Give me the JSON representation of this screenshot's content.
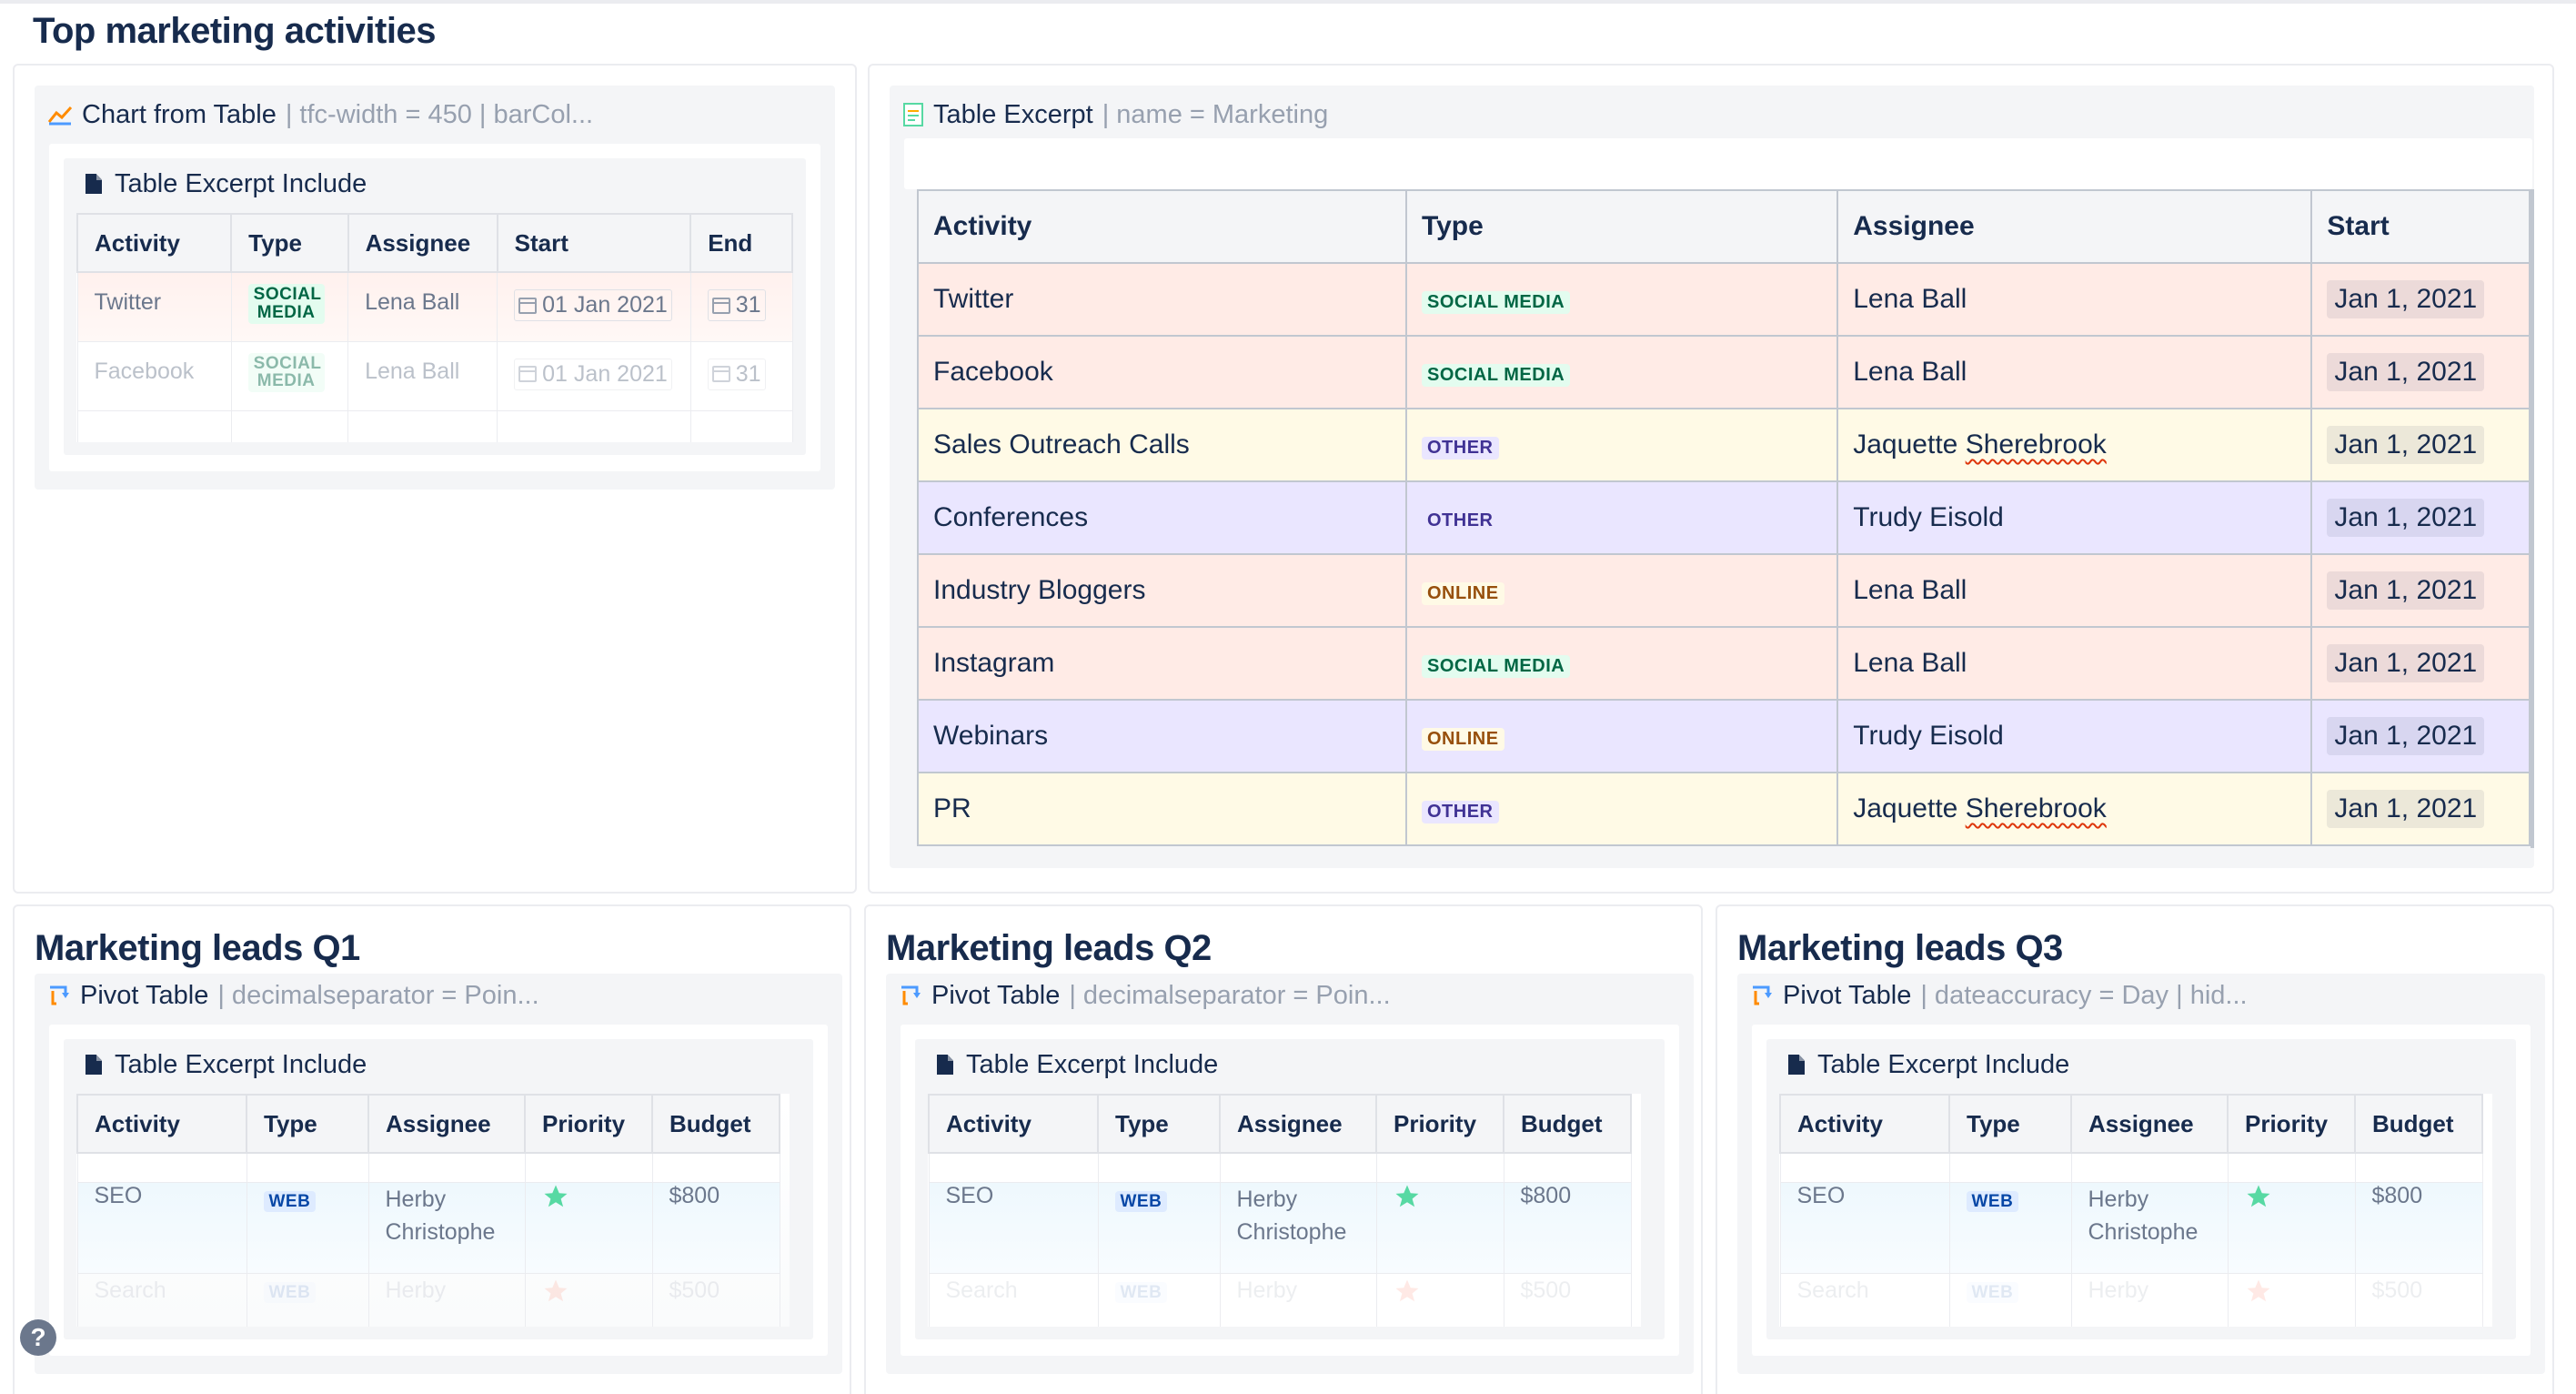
{
  "page": {
    "title": "Top marketing activities"
  },
  "chart_macro": {
    "title": "Chart from Table",
    "params": "| tfc-width = 450 | barCol...",
    "include_title": "Table Excerpt Include",
    "headers": [
      "Activity",
      "Type",
      "Assignee",
      "Start",
      "End"
    ],
    "rows": [
      {
        "activity": "Twitter",
        "type": "SOCIAL MEDIA",
        "assignee": "Lena Ball",
        "start": "01 Jan 2021",
        "end": "31"
      },
      {
        "activity": "Facebook",
        "type": "SOCIAL MEDIA",
        "assignee": "Lena Ball",
        "start": "01 Jan 2021",
        "end": "31"
      }
    ]
  },
  "excerpt_macro": {
    "title": "Table Excerpt",
    "params": "| name = Marketing",
    "headers": [
      "Activity",
      "Type",
      "Assignee",
      "Start"
    ],
    "rows": [
      {
        "activity": "Twitter",
        "type": "SOCIAL MEDIA",
        "type_style": "social",
        "assignee": "Lena Ball",
        "start": "Jan 1, 2021",
        "color": "red"
      },
      {
        "activity": "Facebook",
        "type": "SOCIAL MEDIA",
        "type_style": "social",
        "assignee": "Lena Ball",
        "start": "Jan 1, 2021",
        "color": "red"
      },
      {
        "activity": "Sales Outreach Calls",
        "type": "OTHER",
        "type_style": "other",
        "assignee_first": "Jaquette",
        "assignee_last": "Sherebrook",
        "start": "Jan 1, 2021",
        "color": "yellow"
      },
      {
        "activity": "Conferences",
        "type": "OTHER",
        "type_style": "other",
        "assignee": "Trudy Eisold",
        "start": "Jan 1, 2021",
        "color": "purple"
      },
      {
        "activity": "Industry Bloggers",
        "type": "ONLINE",
        "type_style": "online",
        "assignee": "Lena Ball",
        "start": "Jan 1, 2021",
        "color": "red"
      },
      {
        "activity": "Instagram",
        "type": "SOCIAL MEDIA",
        "type_style": "social",
        "assignee": "Lena Ball",
        "start": "Jan 1, 2021",
        "color": "red"
      },
      {
        "activity": "Webinars",
        "type": "ONLINE",
        "type_style": "online",
        "assignee": "Trudy Eisold",
        "start": "Jan 1, 2021",
        "color": "purple"
      },
      {
        "activity": "PR",
        "type": "OTHER",
        "type_style": "other",
        "assignee_first": "Jaquette",
        "assignee_last": "Sherebrook",
        "start": "Jan 1, 2021",
        "color": "yellow"
      }
    ]
  },
  "leads": [
    {
      "title": "Marketing leads Q1",
      "macro_title": "Pivot Table",
      "macro_params": "| decimalseparator = Poin...",
      "include_title": "Table Excerpt Include",
      "headers": [
        "Activity",
        "Type",
        "Assignee",
        "Priority",
        "Budget"
      ],
      "row": {
        "activity": "SEO",
        "type": "WEB",
        "assignee_line1": "Herby",
        "assignee_line2": "Christophe",
        "budget": "$800"
      },
      "faded_row": {
        "activity": "Search",
        "type": "WEB",
        "assignee": "Herby",
        "budget": "$500"
      }
    },
    {
      "title": "Marketing leads Q2",
      "macro_title": "Pivot Table",
      "macro_params": "| decimalseparator = Poin...",
      "include_title": "Table Excerpt Include",
      "headers": [
        "Activity",
        "Type",
        "Assignee",
        "Priority",
        "Budget"
      ],
      "row": {
        "activity": "SEO",
        "type": "WEB",
        "assignee_line1": "Herby",
        "assignee_line2": "Christophe",
        "budget": "$800"
      },
      "faded_row": {
        "activity": "Search",
        "type": "WEB",
        "assignee": "Herby",
        "budget": "$500"
      }
    },
    {
      "title": "Marketing leads Q3",
      "macro_title": "Pivot Table",
      "macro_params": "| dateaccuracy = Day | hid...",
      "include_title": "Table Excerpt Include",
      "headers": [
        "Activity",
        "Type",
        "Assignee",
        "Priority",
        "Budget"
      ],
      "row": {
        "activity": "SEO",
        "type": "WEB",
        "assignee_line1": "Herby",
        "assignee_line2": "Christophe",
        "budget": "$800"
      },
      "faded_row": {
        "activity": "Search",
        "type": "WEB",
        "assignee": "Herby",
        "budget": "$500"
      }
    }
  ],
  "help": {
    "label": "?"
  },
  "colors": {
    "row_red": "#ffebe6",
    "row_yellow": "#fffae6",
    "row_purple": "#eae6ff",
    "star_green": "#57d9a3",
    "star_red": "#ff5630"
  }
}
